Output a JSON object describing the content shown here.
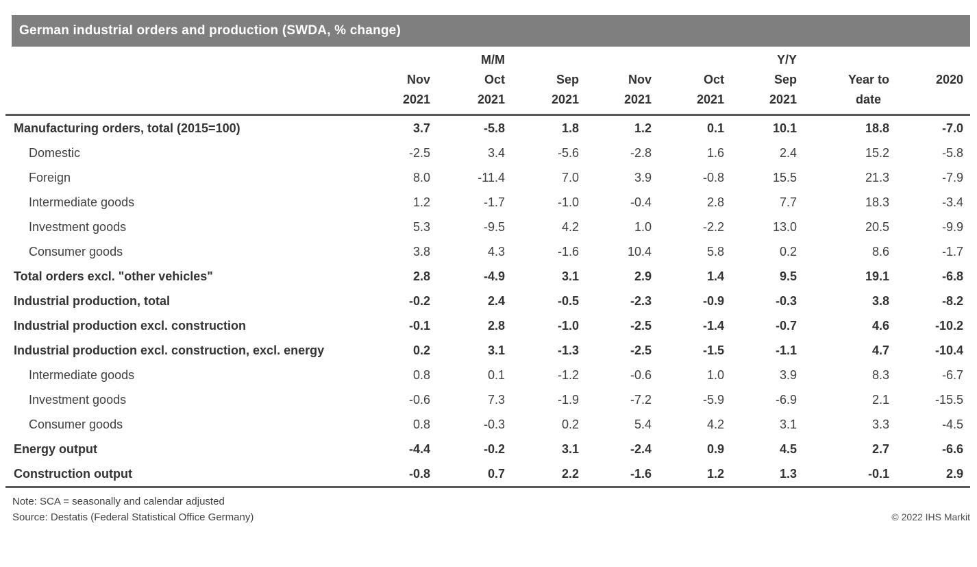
{
  "title": "German industrial orders and production (SWDA, % change)",
  "chart_data": {
    "type": "table",
    "title": "German industrial orders and production (SWDA, % change)",
    "group_headers": {
      "mm": "M/M",
      "yy": "Y/Y"
    },
    "columns": [
      {
        "line1": "Nov",
        "line2": "2021"
      },
      {
        "line1": "Oct",
        "line2": "2021"
      },
      {
        "line1": "Sep",
        "line2": "2021"
      },
      {
        "line1": "Nov",
        "line2": "2021"
      },
      {
        "line1": "Oct",
        "line2": "2021"
      },
      {
        "line1": "Sep",
        "line2": "2021"
      },
      {
        "line1": "Year to",
        "line2": "date"
      },
      {
        "line1": "2020",
        "line2": ""
      }
    ],
    "rows": [
      {
        "label": "Manufacturing orders, total (2015=100)",
        "style": "bold",
        "values": [
          3.7,
          -5.8,
          1.8,
          1.2,
          0.1,
          10.1,
          18.8,
          -7.0
        ]
      },
      {
        "label": "Domestic",
        "style": "indent",
        "values": [
          -2.5,
          3.4,
          -5.6,
          -2.8,
          1.6,
          2.4,
          15.2,
          -5.8
        ]
      },
      {
        "label": "Foreign",
        "style": "indent",
        "values": [
          8.0,
          -11.4,
          7.0,
          3.9,
          -0.8,
          15.5,
          21.3,
          -7.9
        ]
      },
      {
        "label": "Intermediate goods",
        "style": "indent",
        "values": [
          1.2,
          -1.7,
          -1.0,
          -0.4,
          2.8,
          7.7,
          18.3,
          -3.4
        ]
      },
      {
        "label": "Investment goods",
        "style": "indent",
        "values": [
          5.3,
          -9.5,
          4.2,
          1.0,
          -2.2,
          13.0,
          20.5,
          -9.9
        ]
      },
      {
        "label": "Consumer goods",
        "style": "indent",
        "values": [
          3.8,
          4.3,
          -1.6,
          10.4,
          5.8,
          0.2,
          8.6,
          -1.7
        ]
      },
      {
        "label": "Total orders excl. \"other vehicles\"",
        "style": "bold",
        "values": [
          2.8,
          -4.9,
          3.1,
          2.9,
          1.4,
          9.5,
          19.1,
          -6.8
        ]
      },
      {
        "label": "Industrial production, total",
        "style": "bold",
        "values": [
          -0.2,
          2.4,
          -0.5,
          -2.3,
          -0.9,
          -0.3,
          3.8,
          -8.2
        ]
      },
      {
        "label": "Industrial production excl. construction",
        "style": "bold",
        "values": [
          -0.1,
          2.8,
          -1.0,
          -2.5,
          -1.4,
          -0.7,
          4.6,
          -10.2
        ]
      },
      {
        "label": "Industrial production excl. construction, excl. energy",
        "style": "bold",
        "values": [
          0.2,
          3.1,
          -1.3,
          -2.5,
          -1.5,
          -1.1,
          4.7,
          -10.4
        ]
      },
      {
        "label": "Intermediate goods",
        "style": "indent",
        "values": [
          0.8,
          0.1,
          -1.2,
          -0.6,
          1.0,
          3.9,
          8.3,
          -6.7
        ]
      },
      {
        "label": "Investment goods",
        "style": "indent",
        "values": [
          -0.6,
          7.3,
          -1.9,
          -7.2,
          -5.9,
          -6.9,
          2.1,
          -15.5
        ]
      },
      {
        "label": "Consumer goods",
        "style": "indent",
        "values": [
          0.8,
          -0.3,
          0.2,
          5.4,
          4.2,
          3.1,
          3.3,
          -4.5
        ]
      },
      {
        "label": "Energy output",
        "style": "bold",
        "values": [
          -4.4,
          -0.2,
          3.1,
          -2.4,
          0.9,
          4.5,
          2.7,
          -6.6
        ]
      },
      {
        "label": "Construction output",
        "style": "bold",
        "values": [
          -0.8,
          0.7,
          2.2,
          -1.6,
          1.2,
          1.3,
          -0.1,
          2.9
        ]
      }
    ]
  },
  "footer": {
    "note": "Note: SCA = seasonally and calendar adjusted",
    "source": "Source: Destatis (Federal Statistical Office Germany)",
    "copyright": "© 2022 IHS Markit"
  },
  "colors": {
    "title_bar": "#7f7f7f",
    "title_text": "#ffffff",
    "rule": "#595959",
    "text": "#404040",
    "bold_text": "#333333",
    "copyright_text": "#4d4d4d"
  }
}
